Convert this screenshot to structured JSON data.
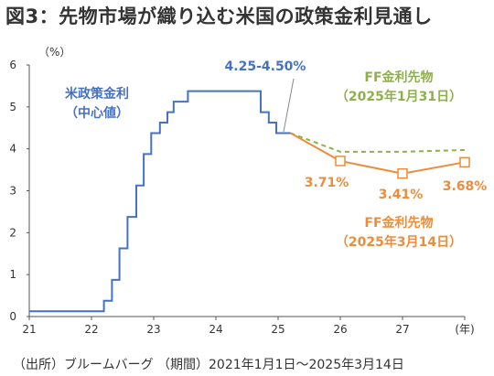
{
  "title": "図3：先物市場が織り込む米国の政策金利見通し",
  "source": "（出所）ブルームバーグ （期間）2021年1月1日～2025年3月14日",
  "chart_data": {
    "type": "line",
    "title": "図3：先物市場が織り込む米国の政策金利見通し",
    "ylabel": "（%）",
    "xlabel": "（年）",
    "xlim": [
      21,
      28
    ],
    "ylim": [
      0,
      6
    ],
    "x_ticks": [
      "21",
      "22",
      "23",
      "24",
      "25",
      "26",
      "27",
      "(年)"
    ],
    "y_ticks": [
      "0",
      "1",
      "2",
      "3",
      "4",
      "5",
      "6"
    ],
    "grid": false,
    "series": [
      {
        "name": "米政策金利（中心値）",
        "label_lines": [
          "米政策金利",
          "（中心値）"
        ],
        "color": "#4472C4",
        "style": "step",
        "points": [
          [
            21.0,
            0.125
          ],
          [
            22.2,
            0.125
          ],
          [
            22.2,
            0.375
          ],
          [
            22.33,
            0.375
          ],
          [
            22.33,
            0.875
          ],
          [
            22.45,
            0.875
          ],
          [
            22.45,
            1.625
          ],
          [
            22.58,
            1.625
          ],
          [
            22.58,
            2.375
          ],
          [
            22.72,
            2.375
          ],
          [
            22.72,
            3.125
          ],
          [
            22.84,
            3.125
          ],
          [
            22.84,
            3.875
          ],
          [
            22.96,
            3.875
          ],
          [
            22.96,
            4.375
          ],
          [
            23.1,
            4.375
          ],
          [
            23.1,
            4.625
          ],
          [
            23.22,
            4.625
          ],
          [
            23.22,
            4.875
          ],
          [
            23.32,
            4.875
          ],
          [
            23.32,
            5.125
          ],
          [
            23.55,
            5.125
          ],
          [
            23.55,
            5.375
          ],
          [
            24.72,
            5.375
          ],
          [
            24.72,
            4.875
          ],
          [
            24.85,
            4.875
          ],
          [
            24.85,
            4.625
          ],
          [
            24.97,
            4.625
          ],
          [
            24.97,
            4.375
          ],
          [
            25.2,
            4.375
          ]
        ]
      },
      {
        "name": "FF金利先物（2025年1月31日）",
        "label_lines": [
          "FF金利先物",
          "（2025年1月31日）"
        ],
        "color": "#8DB04B",
        "style": "dashed",
        "points": [
          [
            25.2,
            4.375
          ],
          [
            26.0,
            3.93
          ],
          [
            27.0,
            3.93
          ],
          [
            28.0,
            3.97
          ]
        ]
      },
      {
        "name": "FF金利先物（2025年3月14日）",
        "label_lines": [
          "FF金利先物",
          "（2025年3月14日）"
        ],
        "color": "#ED8C3B",
        "style": "solid-markers",
        "points": [
          [
            25.2,
            4.375
          ],
          [
            26.0,
            3.71
          ],
          [
            27.0,
            3.41
          ],
          [
            28.0,
            3.68
          ]
        ],
        "marker_indices": [
          1,
          2,
          3
        ]
      }
    ],
    "annotations": [
      {
        "text": "4.25-4.50%",
        "color": "#4472C4"
      },
      {
        "text": "3.71%",
        "color": "#ED8C3B"
      },
      {
        "text": "3.41%",
        "color": "#ED8C3B"
      },
      {
        "text": "3.68%",
        "color": "#ED8C3B"
      }
    ]
  }
}
